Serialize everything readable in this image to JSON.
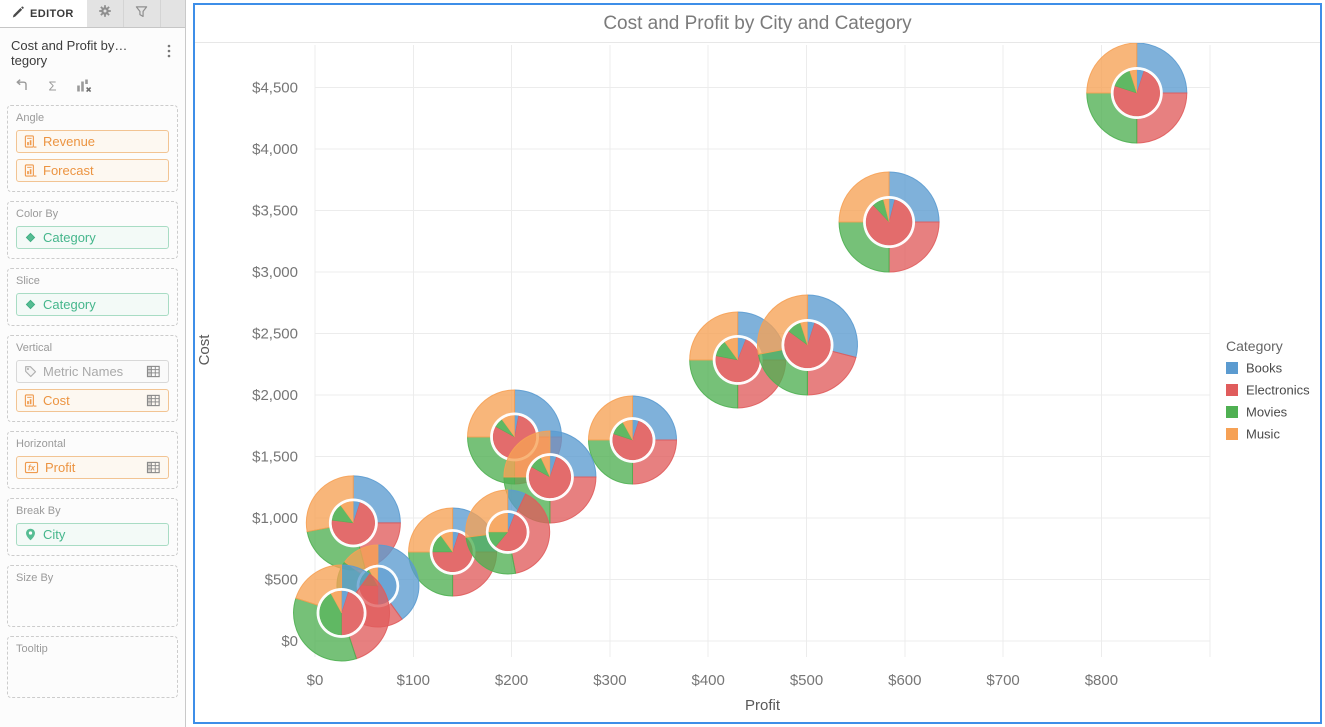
{
  "editor_panel": {
    "tabs": [
      {
        "id": "editor",
        "label": "EDITOR",
        "icon": "pencil",
        "active": true
      },
      {
        "id": "settings",
        "label": "",
        "icon": "gear",
        "active": false
      },
      {
        "id": "filters",
        "label": "",
        "icon": "funnel",
        "active": false
      }
    ],
    "source_title": "Cost and Profit by… tegory",
    "toolbar": [
      {
        "id": "link-arrow",
        "icon": "elbow-arrow"
      },
      {
        "id": "aggregate-sigma",
        "icon": "sigma"
      },
      {
        "id": "clear-chart",
        "icon": "chart-x"
      }
    ],
    "sections": [
      {
        "label": "Angle",
        "pills": [
          {
            "label": "Revenue",
            "variant": "orange",
            "icon": "sheet"
          },
          {
            "label": "Forecast",
            "variant": "orange",
            "icon": "sheet"
          }
        ]
      },
      {
        "label": "Color By",
        "pills": [
          {
            "label": "Category",
            "variant": "green",
            "icon": "diamond"
          }
        ]
      },
      {
        "label": "Slice",
        "pills": [
          {
            "label": "Category",
            "variant": "green",
            "icon": "diamond"
          }
        ]
      },
      {
        "label": "Vertical",
        "pills": [
          {
            "label": "Metric Names",
            "variant": "gray",
            "icon": "tag",
            "right_icon": "grid"
          },
          {
            "label": "Cost",
            "variant": "orange",
            "icon": "sheet",
            "right_icon": "grid"
          }
        ]
      },
      {
        "label": "Horizontal",
        "pills": [
          {
            "label": "Profit",
            "variant": "orange",
            "icon": "fx",
            "right_icon": "grid"
          }
        ]
      },
      {
        "label": "Break By",
        "pills": [
          {
            "label": "City",
            "variant": "green",
            "icon": "pin"
          }
        ]
      },
      {
        "label": "Size By",
        "pills": []
      },
      {
        "label": "Tooltip",
        "pills": []
      }
    ]
  },
  "chart_data": {
    "type": "scatter-pie",
    "title": "Cost and Profit by City and Category",
    "xlabel": "Profit",
    "ylabel": "Cost",
    "xlim": [
      0,
      910
    ],
    "ylim": [
      0,
      4750
    ],
    "grid": true,
    "x_ticks": [
      {
        "value": 0,
        "label": "$0"
      },
      {
        "value": 100,
        "label": "$100"
      },
      {
        "value": 200,
        "label": "$200"
      },
      {
        "value": 300,
        "label": "$300"
      },
      {
        "value": 400,
        "label": "$400"
      },
      {
        "value": 500,
        "label": "$500"
      },
      {
        "value": 600,
        "label": "$600"
      },
      {
        "value": 700,
        "label": "$700"
      },
      {
        "value": 800,
        "label": "$800"
      }
    ],
    "y_ticks": [
      {
        "value": 0,
        "label": "$0"
      },
      {
        "value": 500,
        "label": "$500"
      },
      {
        "value": 1000,
        "label": "$1,000"
      },
      {
        "value": 1500,
        "label": "$1,500"
      },
      {
        "value": 2000,
        "label": "$2,000"
      },
      {
        "value": 2500,
        "label": "$2,500"
      },
      {
        "value": 3000,
        "label": "$3,000"
      },
      {
        "value": 3500,
        "label": "$3,500"
      },
      {
        "value": 4000,
        "label": "$4,000"
      },
      {
        "value": 4500,
        "label": "$4,500"
      }
    ],
    "legend": {
      "title": "Category",
      "position": "right",
      "items": [
        {
          "label": "Books",
          "color": "#5b9bd0"
        },
        {
          "label": "Electronics",
          "color": "#e05c5c"
        },
        {
          "label": "Movies",
          "color": "#4fb052"
        },
        {
          "label": "Music",
          "color": "#f6a155"
        }
      ]
    },
    "series_order": [
      "Books",
      "Electronics",
      "Movies",
      "Music"
    ],
    "points": [
      {
        "id": "b1",
        "profit": 323,
        "cost": 1634,
        "r": 44,
        "outer": [
          0.25,
          0.25,
          0.25,
          0.25
        ],
        "inner": [
          0.05,
          0.75,
          0.12,
          0.08
        ]
      },
      {
        "id": "b2",
        "profit": 203,
        "cost": 1659,
        "r": 47,
        "outer": [
          0.25,
          0.25,
          0.25,
          0.25
        ],
        "inner": [
          0.03,
          0.8,
          0.07,
          0.1
        ]
      },
      {
        "id": "b3",
        "profit": 239,
        "cost": 1333,
        "r": 46,
        "outer": [
          0.25,
          0.25,
          0.25,
          0.25
        ],
        "inner": [
          0.05,
          0.78,
          0.1,
          0.07
        ]
      },
      {
        "id": "b4",
        "profit": 140,
        "cost": 724,
        "r": 44,
        "outer": [
          0.25,
          0.25,
          0.25,
          0.25
        ],
        "inner": [
          0.05,
          0.7,
          0.15,
          0.1
        ]
      },
      {
        "id": "b5",
        "profit": 196,
        "cost": 886,
        "r": 42,
        "outer": [
          0.07,
          0.4,
          0.26,
          0.27
        ],
        "inner": [
          0.06,
          0.55,
          0.14,
          0.25
        ]
      },
      {
        "id": "b6",
        "profit": 39,
        "cost": 960,
        "r": 47,
        "outer": [
          0.25,
          0.21,
          0.26,
          0.28
        ],
        "inner": [
          0.05,
          0.72,
          0.13,
          0.1
        ]
      },
      {
        "id": "b7",
        "profit": 64,
        "cost": 447,
        "r": 41,
        "outer": [
          0.4,
          0.25,
          0.2,
          0.15
        ],
        "inner": [
          0.5,
          0.26,
          0.16,
          0.08
        ]
      },
      {
        "id": "b8",
        "profit": 27,
        "cost": 228,
        "r": 48,
        "outer": [
          0.1,
          0.35,
          0.35,
          0.2
        ],
        "inner": [
          0.05,
          0.45,
          0.42,
          0.08
        ]
      },
      {
        "id": "b9",
        "profit": 430,
        "cost": 2285,
        "r": 48,
        "outer": [
          0.25,
          0.25,
          0.25,
          0.25
        ],
        "inner": [
          0.06,
          0.72,
          0.12,
          0.1
        ]
      },
      {
        "id": "b10",
        "profit": 501,
        "cost": 2407,
        "r": 50,
        "outer": [
          0.29,
          0.21,
          0.22,
          0.28
        ],
        "inner": [
          0.05,
          0.8,
          0.1,
          0.05
        ]
      },
      {
        "id": "b11",
        "profit": 584,
        "cost": 3406,
        "r": 50,
        "outer": [
          0.25,
          0.25,
          0.25,
          0.25
        ],
        "inner": [
          0.04,
          0.84,
          0.08,
          0.04
        ]
      },
      {
        "id": "b12",
        "profit": 836,
        "cost": 4455,
        "r": 50,
        "outer": [
          0.25,
          0.25,
          0.25,
          0.25
        ],
        "inner": [
          0.05,
          0.75,
          0.15,
          0.05
        ]
      }
    ]
  }
}
